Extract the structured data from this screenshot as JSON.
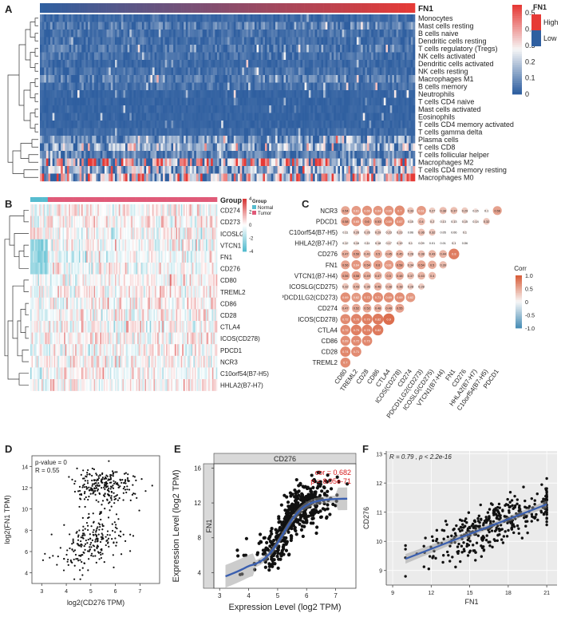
{
  "colors": {
    "high": "#e63a36",
    "low": "#2f5fa0",
    "mid": "#f4f4f4",
    "heat_red": "#d83a3a",
    "heat_blue": "#56bccf",
    "corr_pos": "#d95f3b",
    "corr_neg": "#4b8fb7",
    "fit": "#3a5fb0",
    "annot_red": "#d7191c"
  },
  "panels": {
    "a": {
      "label": "A",
      "chart_data": {
        "type": "heatmap",
        "annotation_title": "FN1",
        "rows": [
          "Monocytes",
          "Mast cells resting",
          "B cells naive",
          "Dendritic cells resting",
          "T cells regulatory (Tregs)",
          "NK cells activated",
          "Dendritic cells activated",
          "NK cells resting",
          "Macrophages M1",
          "B cells memory",
          "Neutrophils",
          "T cells CD4 naive",
          "Mast cells activated",
          "Eosinophils",
          "T cells CD4 memory activated",
          "T cells gamma delta",
          "Plasma cells",
          "T cells CD8",
          "T cells follicular helper",
          "Macrophages M2",
          "T cells CD4 memory resting",
          "Macrophages M0"
        ],
        "colorbar_ticks": [
          "0.5",
          "0.4",
          "0.3",
          "0.2",
          "0.1",
          "0"
        ],
        "colorbar_range": [
          0,
          0.55
        ],
        "annotation_legend": {
          "title": "FN1",
          "high": "High",
          "low": "Low"
        },
        "row_intensity": [
          0.02,
          0.05,
          0.03,
          0.03,
          0.04,
          0.03,
          0.02,
          0.03,
          0.06,
          0.03,
          0.01,
          0.01,
          0.01,
          0.01,
          0.01,
          0.02,
          0.1,
          0.14,
          0.06,
          0.28,
          0.16,
          0.24
        ]
      }
    },
    "b": {
      "label": "B",
      "chart_data": {
        "type": "heatmap",
        "annotation_title": "Group",
        "rows": [
          "CD274",
          "CD273",
          "ICOSLG",
          "VTCN1",
          "FN1",
          "CD276",
          "CD80",
          "TREML2",
          "CD86",
          "CD28",
          "CTLA4",
          "ICOS(CD278)",
          "PDCD1",
          "NCR3",
          "C10orf54(B7-H5)",
          "HHLA2(B7-H7)"
        ],
        "colorbar_ticks": [
          "4",
          "2",
          "0",
          "-2",
          "-4"
        ],
        "colorbar_range": [
          -4,
          4
        ],
        "group_legend": {
          "title": "Group",
          "items": [
            "Normal",
            "Tumor"
          ]
        },
        "row_bias": [
          0.3,
          0.2,
          0.1,
          -0.2,
          -0.8,
          -0.5,
          0.1,
          0.2,
          0.3,
          0.3,
          0.2,
          0.3,
          0.2,
          0.1,
          0.2,
          0.3
        ]
      }
    },
    "c": {
      "label": "C",
      "chart_data": {
        "type": "heatmap",
        "row_labels": [
          "NCR3",
          "PDCD1",
          "C10orf54(B7-H5)",
          "HHLA2(B7-H7)",
          "CD276",
          "FN1",
          "VTCN1(B7-H4)",
          "ICOSLG(CD275)",
          "PDCD1LG2(CD273)",
          "CD274",
          "ICOS(CD278)",
          "CTLA4",
          "CD86",
          "CD28",
          "TREML2"
        ],
        "col_labels": [
          "CD80",
          "TREML2",
          "CD28",
          "CD86",
          "CTLA4",
          "ICOS(CD278)",
          "CD274",
          "PDCD1LG2(CD273)",
          "ICOSLG(CD275)",
          "VTCN1(B7-H4)",
          "FN1",
          "CD276",
          "HHLA2(B7-H7)",
          "C10orf54(B7-H5)",
          "PDCD1"
        ],
        "values": [
          [
            "0.54",
            "0.61",
            "0.66",
            "0.64",
            "0.65",
            "0.7",
            "0.33",
            "0.61",
            "0.27",
            "0.38",
            "0.37",
            "0.29",
            "0.15",
            "0.1",
            "0.56"
          ],
          [
            "0.58",
            "0.65",
            "0.6",
            "0.53",
            "0.69",
            "0.67",
            "0.15",
            "0.4",
            "0.2",
            "0.13",
            "0.13",
            "0.15",
            "0.14",
            "0.32"
          ],
          [
            "0.11",
            "0.26",
            "0.26",
            "0.29",
            "0.23",
            "0.23",
            "0.06",
            "0.36",
            "0.32",
            "0.05",
            "0.06",
            "0.1"
          ],
          [
            "0.12",
            "0.16",
            "0.11",
            "0.18",
            "0.17",
            "0.19",
            "0.1",
            "0.09",
            "0.01",
            "0.01",
            "0.1",
            "0.06"
          ],
          [
            "0.47",
            "0.56",
            "0.41",
            "0.5",
            "0.45",
            "0.45",
            "0.28",
            "0.38",
            "0.43",
            "0.44",
            "0.8"
          ],
          [
            "0.56",
            "0.64",
            "0.54",
            "0.6",
            "0.61",
            "0.58",
            "0.34",
            "0.54",
            "0.5",
            "0.39"
          ],
          [
            "0.56",
            "0.58",
            "0.49",
            "0.47",
            "0.5",
            "0.48",
            "0.37",
            "0.43",
            "0.4"
          ],
          [
            "0.32",
            "0.43",
            "0.36",
            "0.46",
            "0.38",
            "0.38",
            "0.28",
            "0.28"
          ],
          [
            "0.69",
            "0.62",
            "0.72",
            "0.71",
            "0.69",
            "0.69",
            "0.62"
          ],
          [
            "0.47",
            "0.52",
            "0.52",
            "0.48",
            "0.49",
            "0.55"
          ],
          [
            "0.72",
            "0.76",
            "0.79",
            "0.82",
            "0.9"
          ],
          [
            "0.72",
            "0.79",
            "0.78",
            "0.82"
          ],
          [
            "0.69",
            "0.72",
            "0.73"
          ],
          [
            "0.74",
            "0.71"
          ],
          [
            "0.7"
          ]
        ],
        "legend": {
          "title": "Corr",
          "ticks": [
            "1.0",
            "0.5",
            "0",
            "-0.5",
            "-1.0"
          ]
        }
      }
    },
    "d": {
      "label": "D",
      "chart_data": {
        "type": "scatter",
        "annotations": [
          "p-value = 0",
          "R = 0.55"
        ],
        "xlabel": "log2(CD276 TPM)",
        "ylabel": "log2(FN1 TPM)",
        "xlim": [
          2.6,
          7.8
        ],
        "ylim": [
          3,
          15
        ],
        "xticks": [
          "3",
          "4",
          "5",
          "6",
          "7"
        ],
        "yticks": [
          "4",
          "6",
          "8",
          "10",
          "12",
          "14"
        ],
        "n_points": 450
      }
    },
    "e": {
      "label": "E",
      "chart_data": {
        "type": "scatter",
        "strip_top": "CD276",
        "strip_left": "FN1",
        "annotations": [
          "cor = 0.682",
          "p = 8.05e-71"
        ],
        "xlabel": "Expression Level (log2 TPM)",
        "ylabel": "Expression Level (log2 TPM)",
        "xlim": [
          2.8,
          7.7
        ],
        "ylim": [
          2.2,
          16.5
        ],
        "xticks": [
          "3",
          "4",
          "5",
          "6",
          "7"
        ],
        "yticks": [
          "4",
          "8",
          "12",
          "16"
        ],
        "n_points": 480
      }
    },
    "f": {
      "label": "F",
      "chart_data": {
        "type": "scatter",
        "annotation": "R = 0.79 , p < 2.2e-16",
        "xlabel": "FN1",
        "ylabel": "CD276",
        "xlim": [
          8.5,
          21.8
        ],
        "ylim": [
          8.5,
          13.1
        ],
        "xticks": [
          "9",
          "12",
          "15",
          "18",
          "21"
        ],
        "yticks": [
          "9",
          "10",
          "11",
          "12",
          "13"
        ],
        "n_points": 380
      }
    }
  }
}
